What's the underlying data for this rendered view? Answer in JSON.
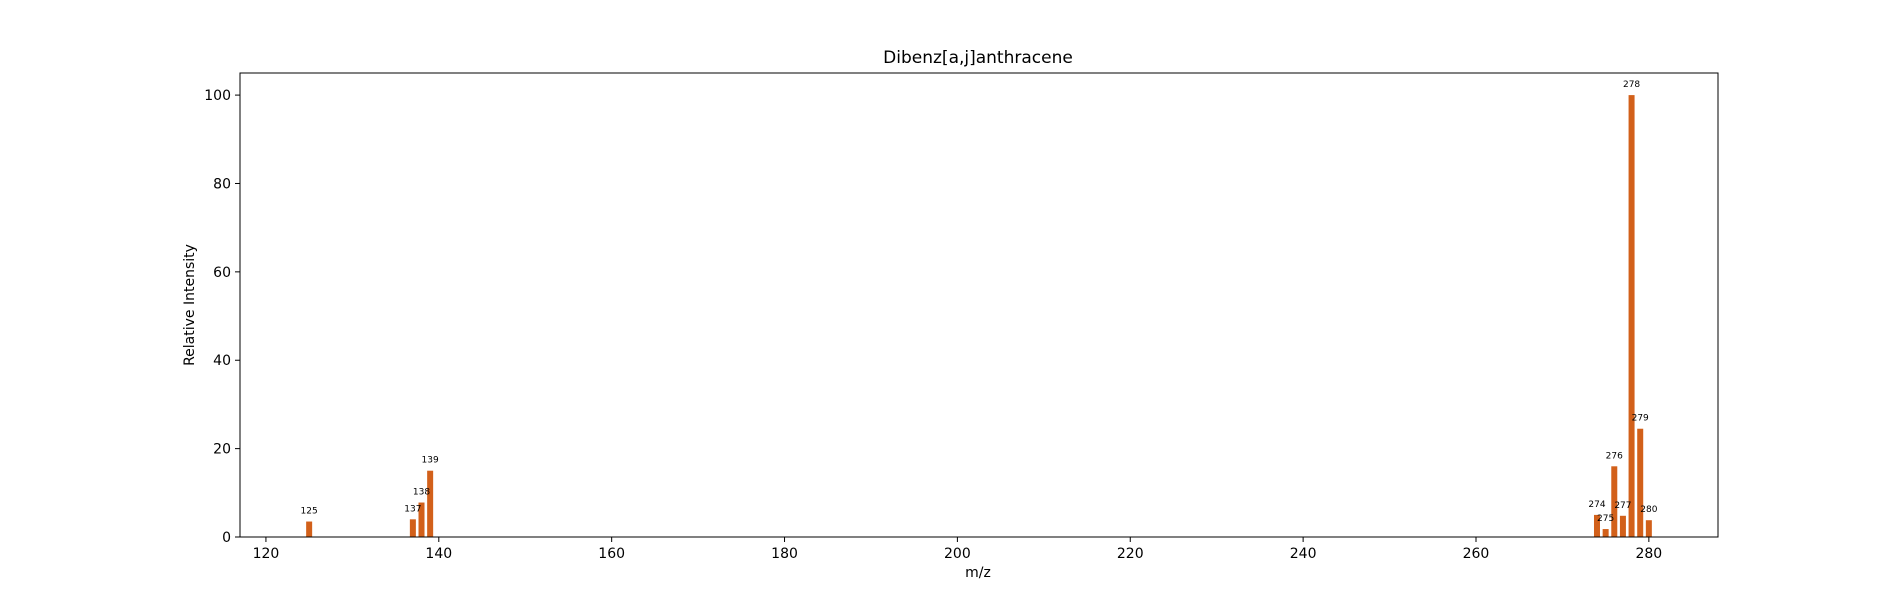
{
  "chart_data": {
    "type": "bar",
    "title": "Dibenz[a,j]anthracene",
    "xlabel": "m/z",
    "ylabel": "Relative Intensity",
    "xlim": [
      117,
      288
    ],
    "ylim": [
      0,
      105
    ],
    "xticks": [
      120,
      140,
      160,
      180,
      200,
      220,
      240,
      260,
      280
    ],
    "yticks": [
      0,
      20,
      40,
      60,
      80,
      100
    ],
    "grid": false,
    "bar_color": "#d2601a",
    "peaks": [
      {
        "mz": 125,
        "intensity": 3.5,
        "label": "125"
      },
      {
        "mz": 137,
        "intensity": 4.0,
        "label": "137"
      },
      {
        "mz": 138,
        "intensity": 7.8,
        "label": "138"
      },
      {
        "mz": 139,
        "intensity": 15.0,
        "label": "139"
      },
      {
        "mz": 274,
        "intensity": 5.0,
        "label": "274"
      },
      {
        "mz": 275,
        "intensity": 1.8,
        "label": "275"
      },
      {
        "mz": 276,
        "intensity": 16.0,
        "label": "276"
      },
      {
        "mz": 277,
        "intensity": 4.8,
        "label": "277"
      },
      {
        "mz": 278,
        "intensity": 100.0,
        "label": "278"
      },
      {
        "mz": 279,
        "intensity": 24.5,
        "label": "279"
      },
      {
        "mz": 280,
        "intensity": 3.8,
        "label": "280"
      }
    ]
  }
}
